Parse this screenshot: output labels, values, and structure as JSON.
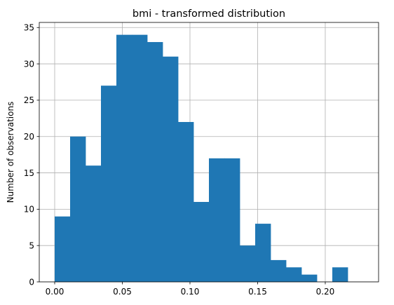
{
  "chart_data": {
    "type": "bar",
    "title": "bmi - transformed distribution",
    "xlabel": "",
    "ylabel": "Number of observations",
    "x_range": [
      -0.0114,
      0.2394
    ],
    "ylim": [
      0,
      35.7
    ],
    "x_ticks": [
      0.0,
      0.05,
      0.1,
      0.15,
      0.2
    ],
    "x_tick_labels": [
      "0.00",
      "0.05",
      "0.10",
      "0.15",
      "0.20"
    ],
    "y_ticks": [
      0,
      5,
      10,
      15,
      20,
      25,
      30,
      35
    ],
    "y_tick_labels": [
      "0",
      "5",
      "10",
      "15",
      "20",
      "25",
      "30",
      "35"
    ],
    "grid": true,
    "bar_color": "#1f77b4",
    "bin_edges": [
      0.0,
      0.0114,
      0.0228,
      0.0342,
      0.0456,
      0.057,
      0.0684,
      0.0798,
      0.0912,
      0.1026,
      0.114,
      0.1254,
      0.1368,
      0.1482,
      0.1596,
      0.171,
      0.1824,
      0.1938,
      0.2052,
      0.2166,
      0.228
    ],
    "values": [
      9,
      20,
      16,
      27,
      34,
      34,
      33,
      31,
      22,
      11,
      17,
      17,
      5,
      8,
      3,
      2,
      1,
      0,
      2,
      0
    ]
  }
}
